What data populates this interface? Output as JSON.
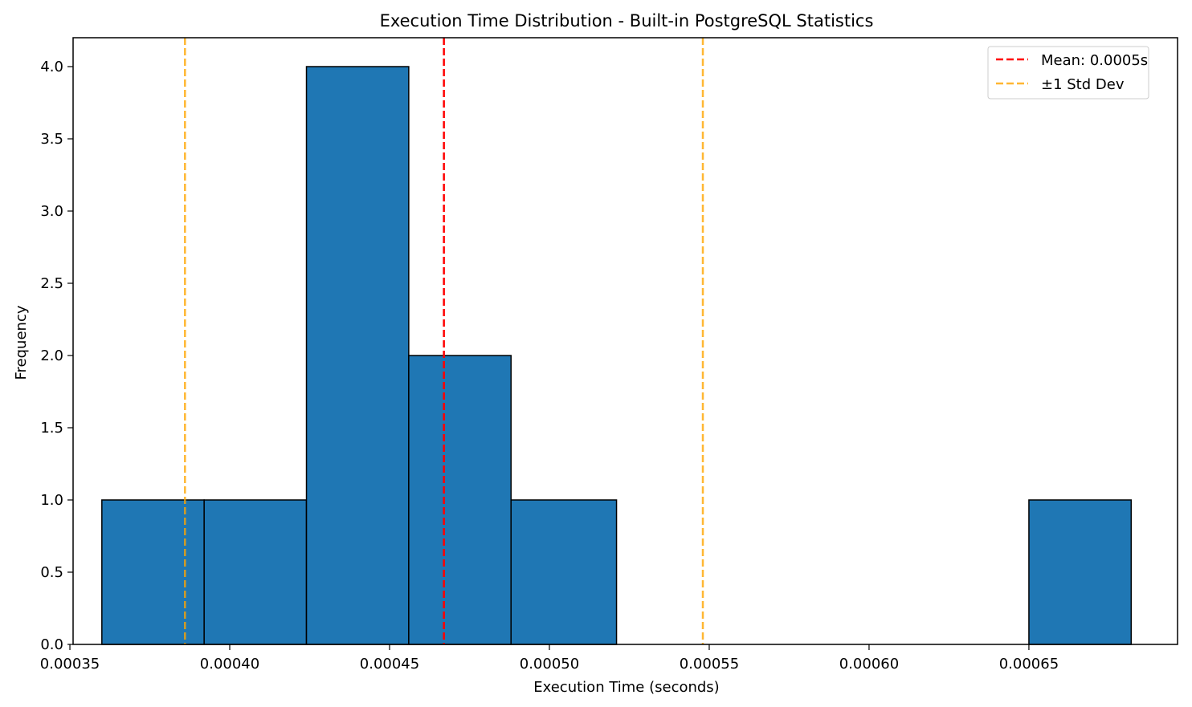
{
  "chart_data": {
    "type": "bar",
    "title": "Execution Time Distribution - Built-in PostgreSQL Statistics",
    "xlabel": "Execution Time (seconds)",
    "ylabel": "Frequency",
    "xlim": [
      0.000351,
      0.0006965
    ],
    "ylim": [
      0,
      4.2
    ],
    "xticks": [
      0.00035,
      0.0004,
      0.00045,
      0.0005,
      0.00055,
      0.0006,
      0.00065
    ],
    "xtick_labels": [
      "0.00035",
      "0.00040",
      "0.00045",
      "0.00050",
      "0.00055",
      "0.00060",
      "0.00065"
    ],
    "yticks": [
      0,
      0.5,
      1,
      1.5,
      2,
      2.5,
      3,
      3.5,
      4
    ],
    "ytick_labels": [
      "0.0",
      "0.5",
      "1.0",
      "1.5",
      "2.0",
      "2.5",
      "3.0",
      "3.5",
      "4.0"
    ],
    "bins": [
      {
        "start": 0.00036,
        "end": 0.000392,
        "count": 1
      },
      {
        "start": 0.000392,
        "end": 0.000424,
        "count": 1
      },
      {
        "start": 0.000424,
        "end": 0.000456,
        "count": 4
      },
      {
        "start": 0.000456,
        "end": 0.000488,
        "count": 2
      },
      {
        "start": 0.000488,
        "end": 0.000521,
        "count": 1
      },
      {
        "start": 0.000521,
        "end": 0.000553,
        "count": 0
      },
      {
        "start": 0.000553,
        "end": 0.000585,
        "count": 0
      },
      {
        "start": 0.000585,
        "end": 0.000617,
        "count": 0
      },
      {
        "start": 0.000617,
        "end": 0.00065,
        "count": 0
      },
      {
        "start": 0.00065,
        "end": 0.000682,
        "count": 1
      }
    ],
    "mean": 0.000467,
    "std_lower": 0.000386,
    "std_upper": 0.000548,
    "legend": {
      "placement": "top-right",
      "entries": [
        {
          "label": "Mean: 0.0005s",
          "color": "#ff0000"
        },
        {
          "label": "±1 Std Dev",
          "color": "#ffa500"
        }
      ]
    },
    "grid": false,
    "colors": {
      "bar_fill": "#1f77b4",
      "bar_edge": "#000000",
      "mean_line": "#ff0000",
      "std_line": "#ffa500"
    }
  }
}
